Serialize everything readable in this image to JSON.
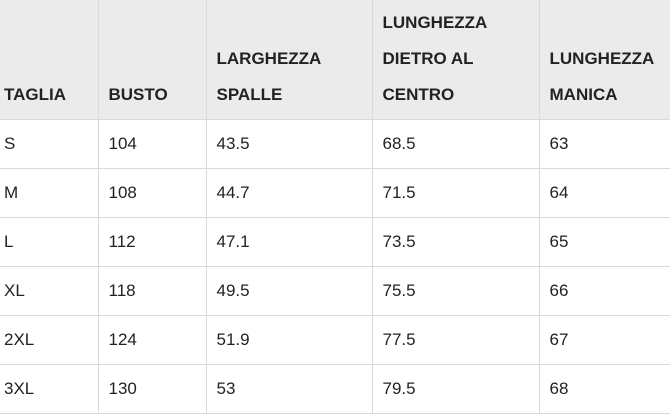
{
  "table": {
    "header": [
      "TAGLIA",
      "BUSTO",
      "LARGHEZZA\nSPALLE",
      "LUNGHEZZA\nDIETRO AL\nCENTRO",
      "LUNGHEZZA\nMANICA"
    ],
    "rows": [
      [
        "S",
        "104",
        "43.5",
        "68.5",
        "63"
      ],
      [
        "M",
        "108",
        "44.7",
        "71.5",
        "64"
      ],
      [
        "L",
        "112",
        "47.1",
        "73.5",
        "65"
      ],
      [
        "XL",
        "118",
        "49.5",
        "75.5",
        "66"
      ],
      [
        "2XL",
        "124",
        "51.9",
        "77.5",
        "67"
      ],
      [
        "3XL",
        "130",
        "53",
        "79.5",
        "68"
      ]
    ]
  }
}
